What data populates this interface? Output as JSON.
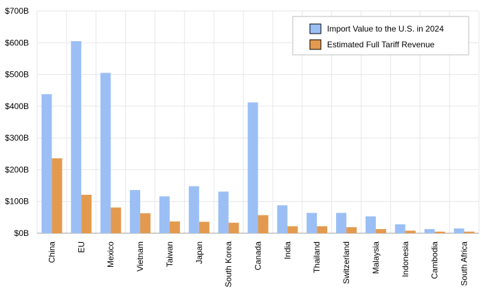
{
  "chart_data": {
    "type": "bar",
    "title": "",
    "xlabel": "",
    "ylabel": "",
    "ylim": [
      0,
      700
    ],
    "y_unit": "billions USD",
    "y_ticks": [
      0,
      100,
      200,
      300,
      400,
      500,
      600,
      700
    ],
    "y_tick_labels": [
      "$0B",
      "$100B",
      "$200B",
      "$300B",
      "$400B",
      "$500B",
      "$600B",
      "$700B"
    ],
    "grid": true,
    "legend_position": "top-right",
    "categories": [
      "China",
      "EU",
      "Mexico",
      "Vietnam",
      "Taiwan",
      "Japan",
      "South Korea",
      "Canada",
      "India",
      "Thailand",
      "Switzerland",
      "Malaysia",
      "Indonesia",
      "Cambodia",
      "South Africa"
    ],
    "series": [
      {
        "name": "Import Value to the U.S. in 2024",
        "color": "#9bbff5",
        "values": [
          438,
          605,
          505,
          136,
          116,
          148,
          131,
          412,
          88,
          64,
          64,
          53,
          28,
          13,
          15
        ]
      },
      {
        "name": "Estimated Full Tariff Revenue",
        "color": "#e39a4f",
        "values": [
          236,
          121,
          81,
          63,
          37,
          36,
          33,
          57,
          22,
          22,
          19,
          13,
          8,
          5,
          5
        ]
      }
    ]
  }
}
